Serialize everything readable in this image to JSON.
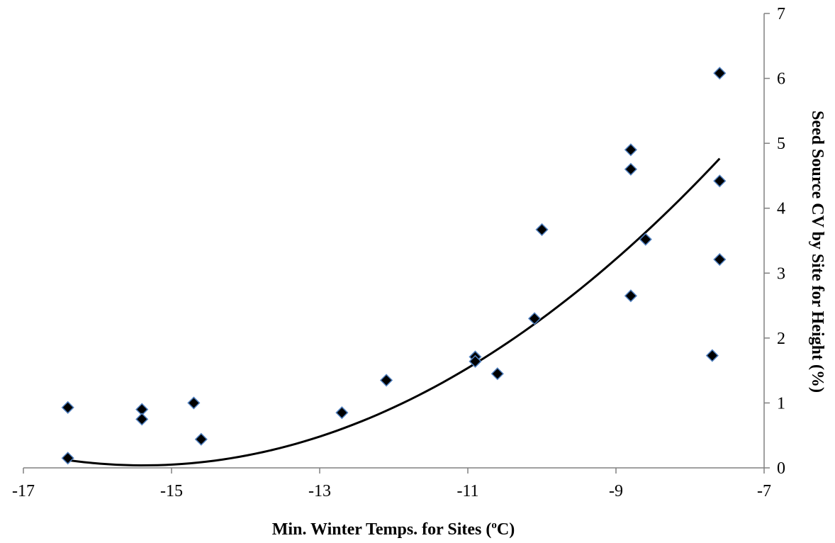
{
  "chart_data": {
    "type": "scatter",
    "xlabel": "Min. Winter Temps. for Sites (",
    "xlabel_sup": "o",
    "xlabel_end": "C)",
    "ylabel": "Seed Source CV by Site  for Height (%)",
    "xlim": [
      -17,
      -7
    ],
    "ylim": [
      0,
      7
    ],
    "xticks": [
      -17,
      -15,
      -13,
      -11,
      -9,
      -7
    ],
    "yticks": [
      0,
      1,
      2,
      3,
      4,
      5,
      6,
      7
    ],
    "y_axis_position": "right",
    "grid": false,
    "legend": "none",
    "points": [
      {
        "x": -16.4,
        "y": 0.93
      },
      {
        "x": -16.4,
        "y": 0.15
      },
      {
        "x": -15.4,
        "y": 0.9
      },
      {
        "x": -15.4,
        "y": 0.75
      },
      {
        "x": -14.7,
        "y": 1.0
      },
      {
        "x": -14.6,
        "y": 0.44
      },
      {
        "x": -12.7,
        "y": 0.85
      },
      {
        "x": -12.1,
        "y": 1.35
      },
      {
        "x": -10.9,
        "y": 1.71
      },
      {
        "x": -10.9,
        "y": 1.64
      },
      {
        "x": -10.6,
        "y": 1.45
      },
      {
        "x": -10.1,
        "y": 2.3
      },
      {
        "x": -10.0,
        "y": 3.67
      },
      {
        "x": -8.8,
        "y": 4.9
      },
      {
        "x": -8.8,
        "y": 4.6
      },
      {
        "x": -8.8,
        "y": 2.65
      },
      {
        "x": -8.6,
        "y": 3.52
      },
      {
        "x": -7.7,
        "y": 1.73
      },
      {
        "x": -7.6,
        "y": 6.08
      },
      {
        "x": -7.6,
        "y": 4.42
      },
      {
        "x": -7.6,
        "y": 3.21
      }
    ],
    "trendline": {
      "type": "polynomial",
      "x_range": [
        -16.4,
        -7.6
      ],
      "coefficients": [
        0.078,
        2.4,
        18.5
      ]
    },
    "colors": {
      "marker_fill": "#000000",
      "marker_stroke": "#4f7fbf",
      "trendline": "#000000",
      "axis": "#808080"
    }
  }
}
